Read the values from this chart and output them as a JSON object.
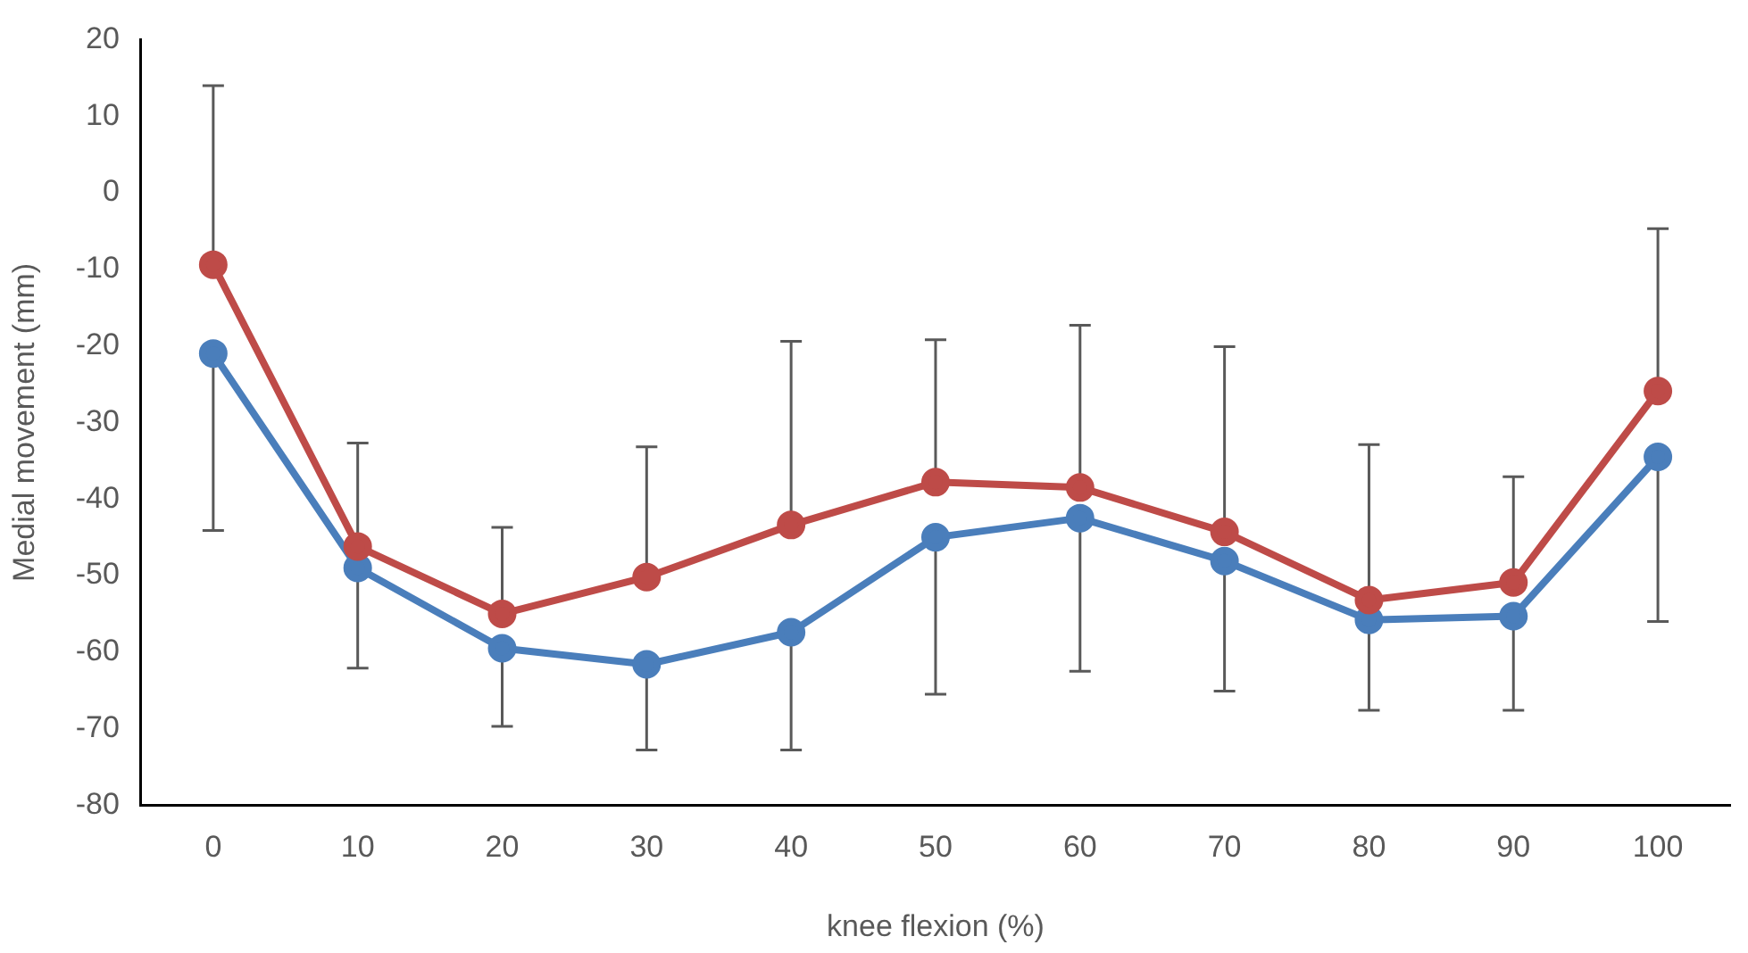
{
  "chart_data": {
    "type": "line",
    "xlabel": "knee flexion (%)",
    "ylabel": "Medial movement (mm)",
    "categories": [
      "0",
      "10",
      "20",
      "30",
      "40",
      "50",
      "60",
      "70",
      "80",
      "90",
      "100"
    ],
    "ylim": [
      -80,
      20
    ],
    "yticks": [
      -80,
      -70,
      -60,
      -50,
      -40,
      -30,
      -20,
      -10,
      0,
      10,
      20
    ],
    "grid": false,
    "legend": false,
    "marker": "circle",
    "line_style": "solid",
    "series": [
      {
        "color": "#be4b48",
        "values": [
          -9.4,
          -46.2,
          -55,
          -50.2,
          -43.4,
          -37.8,
          -38.5,
          -44.3,
          -53.2,
          -50.9,
          -25.9
        ],
        "errors": [
          [
            -9.4,
            14
          ],
          [
            -46.2,
            -32.7
          ],
          [
            -55,
            -43.7
          ],
          [
            -50.2,
            -33.2
          ],
          [
            -43.4,
            -19.4
          ],
          [
            -37.8,
            -19.2
          ],
          [
            -38.5,
            -17.3
          ],
          [
            -44.3,
            -20.1
          ],
          [
            -53.2,
            -32.9
          ],
          [
            -50.9,
            -37.1
          ],
          [
            -25.9,
            -4.7
          ]
        ]
      },
      {
        "color": "#4a7ebb",
        "values": [
          -21,
          -49,
          -59.5,
          -61.6,
          -57.4,
          -45,
          -42.5,
          -48.1,
          -55.8,
          -55.3,
          -34.5
        ],
        "errors": [
          [
            -44.1,
            -21
          ],
          [
            -62.1,
            -49
          ],
          [
            -69.7,
            -59.5
          ],
          [
            -72.8,
            -61.6
          ],
          [
            -72.8,
            -57.4
          ],
          [
            -65.5,
            -45
          ],
          [
            -62.5,
            -42.5
          ],
          [
            -65.1,
            -48.1
          ],
          [
            -67.6,
            -55.8
          ],
          [
            -67.6,
            -55.3
          ],
          [
            -56,
            -34.5
          ]
        ]
      }
    ]
  }
}
